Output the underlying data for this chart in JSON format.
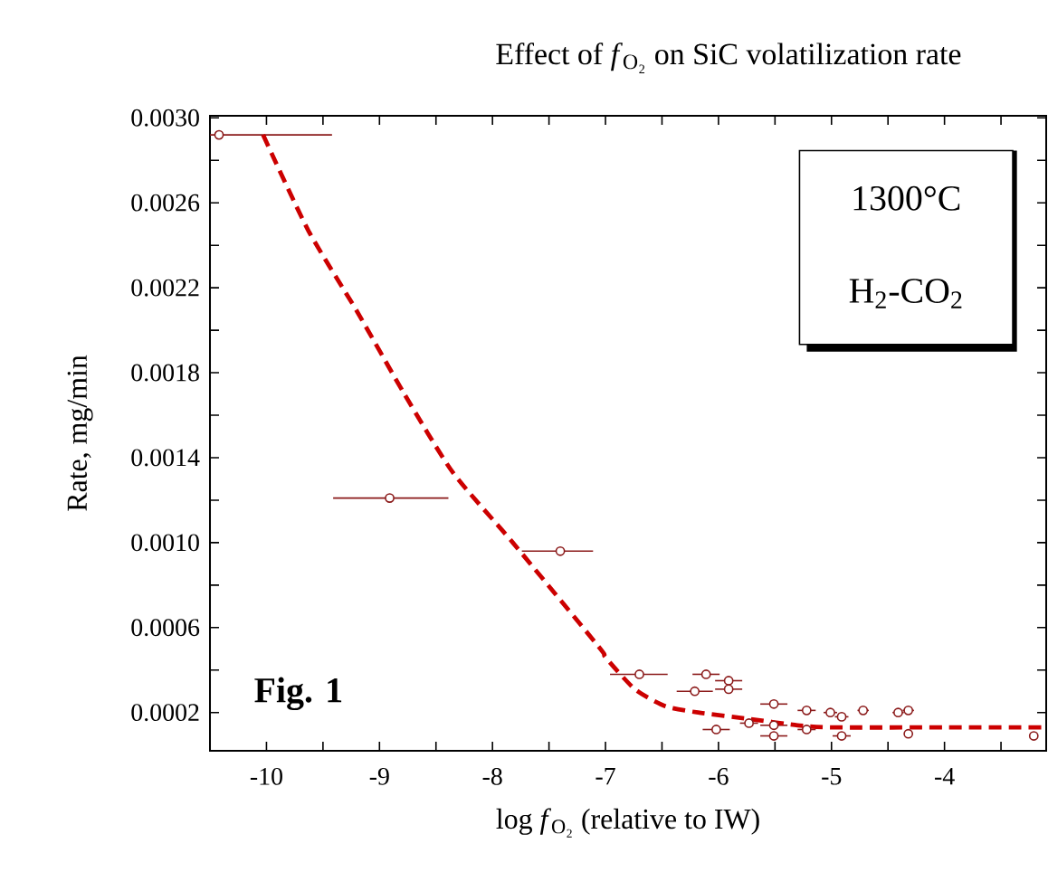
{
  "chart_data": {
    "type": "scatter",
    "title": "Effect of *f*$_{O₂}$ on SiC volatilization rate",
    "xlabel": "log *f*$_{O₂}$ (relative to IW)",
    "ylabel": "Rate, mg/min",
    "annotations": [
      "1300°C",
      "H$_{2}$-CO$_{2}$",
      "Fig.  1"
    ],
    "xlim": [
      -10.5,
      -3.1
    ],
    "ylim": [
      2e-05,
      0.00301
    ],
    "xticks": [
      {
        "value": -10.5,
        "label": null
      },
      -10,
      {
        "value": -9.5,
        "label": null
      },
      -9,
      {
        "value": -8.5,
        "label": null
      },
      -8,
      {
        "value": -7.5,
        "label": null
      },
      -7,
      {
        "value": -6.5,
        "label": null
      },
      -6,
      {
        "value": -5.5,
        "label": null
      },
      -5,
      {
        "value": -4.5,
        "label": null
      },
      -4,
      {
        "value": -3.5,
        "label": null
      }
    ],
    "yticks": [
      {
        "value": 0.0002,
        "label": "0.0002"
      },
      {
        "value": 0.0004,
        "label": null
      },
      {
        "value": 0.0006,
        "label": "0.0006"
      },
      {
        "value": 0.0008,
        "label": null
      },
      {
        "value": 0.001,
        "label": "0.0010"
      },
      {
        "value": 0.0012,
        "label": null
      },
      {
        "value": 0.0014,
        "label": "0.0014"
      },
      {
        "value": 0.0016,
        "label": null
      },
      {
        "value": 0.0018,
        "label": "0.0018"
      },
      {
        "value": 0.002,
        "label": null
      },
      {
        "value": 0.0022,
        "label": "0.0022"
      },
      {
        "value": 0.0024,
        "label": null
      },
      {
        "value": 0.0026,
        "label": "0.0026"
      },
      {
        "value": 0.0028,
        "label": null
      },
      {
        "value": 0.003,
        "label": "0.0030"
      }
    ],
    "marker": "circle",
    "series": [
      {
        "color": "#8b1a1a",
        "x": [
          -10.42,
          -8.91,
          -7.4,
          -6.7,
          -6.11,
          -5.91,
          -6.21,
          -5.91,
          -5.51,
          -5.22,
          -5.01,
          -4.91,
          -4.72,
          -4.41,
          -4.32,
          -6.02,
          -5.73,
          -5.51,
          -5.51,
          -5.22,
          -4.91,
          -4.32,
          -3.21
        ],
        "values": [
          0.00292,
          0.00121,
          0.00096,
          0.00038,
          0.00038,
          0.00035,
          0.0003,
          0.00031,
          0.00024,
          0.00021,
          0.0002,
          0.00018,
          0.00021,
          0.0002,
          0.00021,
          0.00012,
          0.00015,
          0.00014,
          9e-05,
          0.00012,
          9e-05,
          0.0001,
          9e-05
        ],
        "xerrors": [
          [
            -10.5,
            -9.42
          ],
          [
            -9.41,
            -8.39
          ],
          [
            -7.74,
            -7.11
          ],
          [
            -6.96,
            -6.45
          ],
          0.12,
          0.12,
          [
            -6.37,
            -6.05
          ],
          0.12,
          0.12,
          0.08,
          0.06,
          0.06,
          0.05,
          0.05,
          0.05,
          0.12,
          0.08,
          0.12,
          0.12,
          0.08,
          0.08,
          null,
          null
        ]
      },
      {
        "type": "line",
        "color": "#cc0000",
        "line_style": "dashed",
        "marker": "none",
        "x": [
          -10.03,
          -9.63,
          -9.2,
          -8.78,
          -8.35,
          -7.82,
          -7.06,
          -7.0,
          -6.74,
          -6.47,
          -6.18,
          -5.73,
          -5.3,
          -5.0,
          -4.0,
          -3.1
        ],
        "values": [
          0.00292,
          0.00247,
          0.00209,
          0.0017,
          0.00133,
          0.001,
          0.00051,
          0.00046,
          0.00031,
          0.00023,
          0.0002,
          0.00017,
          0.00014,
          0.00013,
          0.00013,
          0.00013
        ]
      }
    ]
  }
}
